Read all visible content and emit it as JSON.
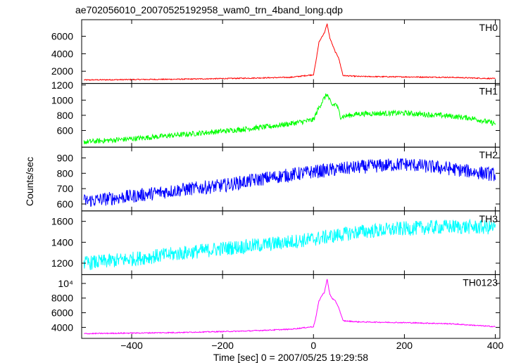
{
  "chart_data": {
    "type": "line",
    "title": "ae702056010_20070525192958_wam0_trn_4band_long.qdp",
    "xlabel": "Time [sec] 0 = 2007/05/25 19:29:58",
    "ylabel": "Counts/sec",
    "xlim": [
      -510,
      410
    ],
    "x_ticks": [
      -400,
      -200,
      0,
      200,
      400
    ],
    "x_tick_labels": [
      "−400",
      "−200",
      "0",
      "200",
      "400"
    ],
    "grid": false,
    "line_width": 1,
    "panels": [
      {
        "name": "TH0",
        "color": "#ff0000",
        "ylim": [
          600,
          7900
        ],
        "yticks": [
          2000,
          4000,
          6000
        ],
        "ytick_labels": [
          "2000",
          "4000",
          "6000"
        ],
        "noise": 60,
        "x": [
          -500,
          -300,
          -150,
          -50,
          0,
          5,
          12,
          18,
          24,
          30,
          36,
          42,
          48,
          55,
          65,
          100,
          200,
          300,
          400
        ],
        "values": [
          1000,
          1080,
          1200,
          1300,
          1600,
          3000,
          5300,
          5900,
          6400,
          7400,
          5800,
          5000,
          4200,
          3600,
          1500,
          1400,
          1350,
          1300,
          1150
        ]
      },
      {
        "name": "TH1",
        "color": "#00ff00",
        "ylim": [
          380,
          1220
        ],
        "yticks": [
          600,
          800,
          1000,
          1200
        ],
        "ytick_labels": [
          "600",
          "800",
          "1000",
          "1200"
        ],
        "noise": 35,
        "x": [
          -500,
          -400,
          -300,
          -200,
          -100,
          -50,
          0,
          10,
          20,
          30,
          40,
          50,
          60,
          100,
          200,
          300,
          350,
          400
        ],
        "values": [
          450,
          490,
          540,
          590,
          650,
          690,
          740,
          880,
          990,
          1080,
          930,
          950,
          780,
          820,
          830,
          790,
          760,
          690
        ]
      },
      {
        "name": "TH2",
        "color": "#0000ff",
        "ylim": [
          555,
          970
        ],
        "yticks": [
          600,
          700,
          800,
          900
        ],
        "ytick_labels": [
          "600",
          "700",
          "800",
          "900"
        ],
        "noise": 45,
        "x": [
          -500,
          -400,
          -300,
          -200,
          -100,
          0,
          100,
          200,
          300,
          400
        ],
        "values": [
          620,
          650,
          690,
          720,
          770,
          810,
          840,
          860,
          830,
          790
        ]
      },
      {
        "name": "TH3",
        "color": "#00ffff",
        "ylim": [
          1090,
          1700
        ],
        "yticks": [
          1200,
          1400,
          1600
        ],
        "ytick_labels": [
          "1200",
          "1400",
          "1600"
        ],
        "noise": 70,
        "x": [
          -500,
          -400,
          -300,
          -200,
          -100,
          0,
          100,
          200,
          300,
          400
        ],
        "values": [
          1200,
          1240,
          1290,
          1340,
          1380,
          1430,
          1500,
          1530,
          1550,
          1540
        ]
      },
      {
        "name": "TH0123",
        "color": "#ff00ff",
        "ylim": [
          2500,
          11200
        ],
        "yticks": [
          4000,
          6000,
          8000,
          10000
        ],
        "ytick_labels": [
          "4000",
          "6000",
          "8000",
          "10⁴"
        ],
        "noise": 70,
        "x": [
          -500,
          -300,
          -150,
          -50,
          0,
          5,
          12,
          18,
          24,
          30,
          36,
          42,
          48,
          55,
          65,
          100,
          200,
          300,
          400
        ],
        "values": [
          3150,
          3300,
          3500,
          3750,
          4100,
          5300,
          7600,
          8300,
          8800,
          10600,
          8500,
          7900,
          7600,
          6800,
          4900,
          4750,
          4650,
          4500,
          4100
        ]
      }
    ]
  }
}
